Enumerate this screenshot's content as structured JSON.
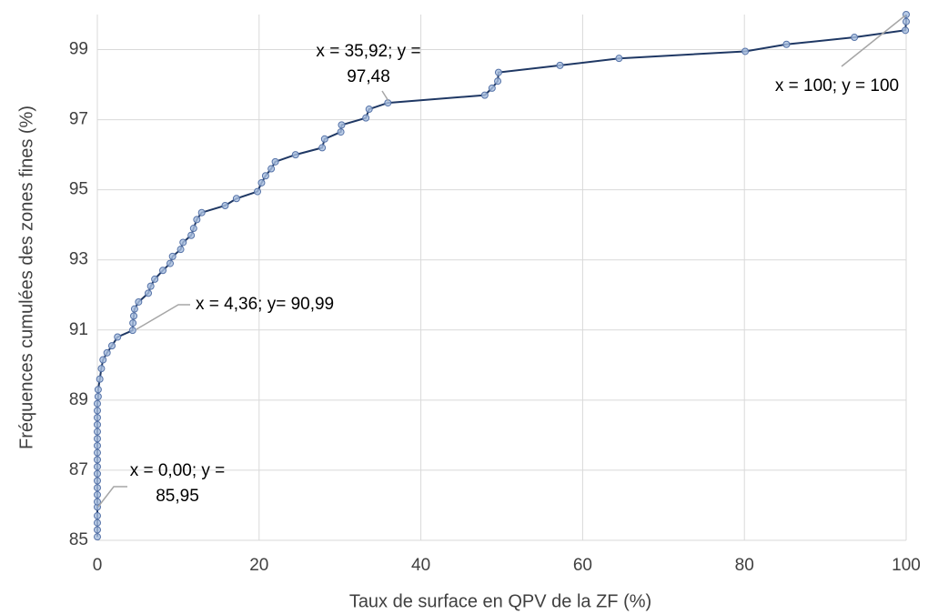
{
  "chart_data": {
    "type": "scatter",
    "xlabel": "Taux de surface en QPV de la ZF (%)",
    "ylabel": "Fréquences cumulées des zones fines (%)",
    "xlim": [
      0,
      100
    ],
    "xticks": [
      0,
      20,
      40,
      60,
      80,
      100
    ],
    "ylim": [
      85,
      100
    ],
    "yticks": [
      85,
      87,
      89,
      91,
      93,
      95,
      97,
      99
    ],
    "grid": true,
    "line_color": "#1f3864",
    "marker_color": "#a9bfe0",
    "marker_edge": "#5673a8",
    "x": [
      0,
      0,
      0,
      0,
      0,
      0,
      0,
      0,
      0,
      0,
      0,
      0,
      0,
      0,
      0,
      0,
      0,
      0,
      0,
      0,
      0.1,
      0.1,
      0.3,
      0.5,
      0.7,
      1.2,
      1.8,
      2.5,
      4.36,
      4.4,
      4.5,
      4.6,
      5.1,
      6.3,
      6.6,
      7.1,
      8.1,
      9.0,
      9.3,
      10.3,
      10.6,
      11.6,
      11.9,
      12.3,
      12.9,
      15.8,
      17.2,
      19.8,
      20.3,
      20.8,
      21.5,
      22.0,
      24.5,
      27.8,
      28.1,
      30.1,
      30.2,
      33.2,
      33.6,
      35.92,
      47.9,
      48.8,
      49.5,
      49.6,
      57.2,
      64.5,
      80.1,
      85.2,
      93.6,
      99.9,
      100,
      100
    ],
    "values": [
      85.1,
      85.3,
      85.5,
      85.7,
      85.95,
      86.1,
      86.3,
      86.5,
      86.7,
      86.9,
      87.1,
      87.3,
      87.5,
      87.7,
      87.9,
      88.1,
      88.3,
      88.5,
      88.7,
      88.9,
      89.1,
      89.3,
      89.6,
      89.9,
      90.15,
      90.35,
      90.55,
      90.8,
      90.99,
      91.2,
      91.4,
      91.6,
      91.8,
      92.05,
      92.25,
      92.45,
      92.7,
      92.9,
      93.1,
      93.3,
      93.5,
      93.7,
      93.9,
      94.15,
      94.35,
      94.55,
      94.75,
      94.95,
      95.2,
      95.4,
      95.6,
      95.8,
      96.0,
      96.2,
      96.45,
      96.65,
      96.85,
      97.05,
      97.3,
      97.48,
      97.7,
      97.9,
      98.1,
      98.35,
      98.55,
      98.75,
      98.95,
      99.15,
      99.35,
      99.55,
      99.8,
      100
    ],
    "annotations": [
      {
        "lines": [
          "x = 35,92; y =",
          "97,48"
        ]
      },
      {
        "lines": [
          "x = 100; y = 100"
        ]
      },
      {
        "lines": [
          "x = 4,36; y= 90,99"
        ]
      },
      {
        "lines": [
          "x = 0,00; y =",
          "85,95"
        ]
      }
    ]
  }
}
